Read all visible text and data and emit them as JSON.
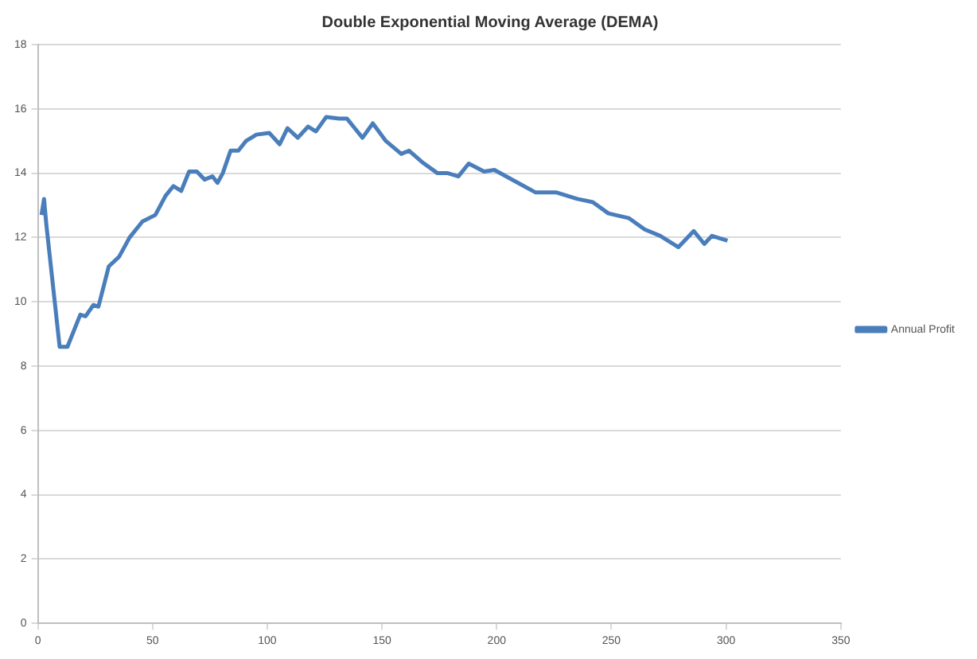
{
  "chart_data": {
    "type": "line",
    "title": "Double Exponential Moving Average (DEMA)",
    "x": [
      1.6,
      2.7,
      3.7,
      9.5,
      12.9,
      18.5,
      20.8,
      24.2,
      26.4,
      30.9,
      35.4,
      40,
      45.6,
      51.2,
      55.7,
      59.1,
      62.5,
      65.9,
      69.3,
      72.7,
      76.1,
      78.3,
      80.6,
      84,
      87.4,
      90.7,
      95.3,
      100.9,
      105.4,
      108.8,
      113.3,
      117.8,
      121.2,
      125.7,
      131.3,
      134.7,
      138.1,
      141.5,
      146,
      151.7,
      158.4,
      161.8,
      167.4,
      174.2,
      178.7,
      183.3,
      187.8,
      194.5,
      199,
      208,
      217,
      226.1,
      235.1,
      241.9,
      248.7,
      257.7,
      264.5,
      271.3,
      279.2,
      285.9,
      290.5,
      293.8,
      300.6
    ],
    "series": [
      {
        "name": "Annual Profit",
        "color": "#4a7ebb",
        "values": [
          12.7,
          13.2,
          12.4,
          8.6,
          8.6,
          9.6,
          9.55,
          9.9,
          9.85,
          11.1,
          11.4,
          12,
          12.5,
          12.7,
          13.3,
          13.6,
          13.45,
          14.05,
          14.05,
          13.8,
          13.9,
          13.7,
          14,
          14.7,
          14.7,
          15,
          15.2,
          15.25,
          14.9,
          15.4,
          15.1,
          15.45,
          15.3,
          15.75,
          15.7,
          15.7,
          15.4,
          15.1,
          15.55,
          15,
          14.6,
          14.7,
          14.35,
          14,
          14,
          13.9,
          14.3,
          14.05,
          14.1,
          13.75,
          13.4,
          13.4,
          13.2,
          13.1,
          12.75,
          12.6,
          12.25,
          12.05,
          11.7,
          12.2,
          11.8,
          12.05,
          11.9
        ]
      }
    ],
    "xlim": [
      0,
      350
    ],
    "xticks": [
      0,
      50,
      100,
      150,
      200,
      250,
      300,
      350
    ],
    "ylim": [
      0,
      18
    ],
    "yticks": [
      0,
      2,
      4,
      6,
      8,
      10,
      12,
      14,
      16,
      18
    ],
    "grid": "y",
    "legend": "right",
    "marker": "none",
    "line_style": "solid"
  }
}
